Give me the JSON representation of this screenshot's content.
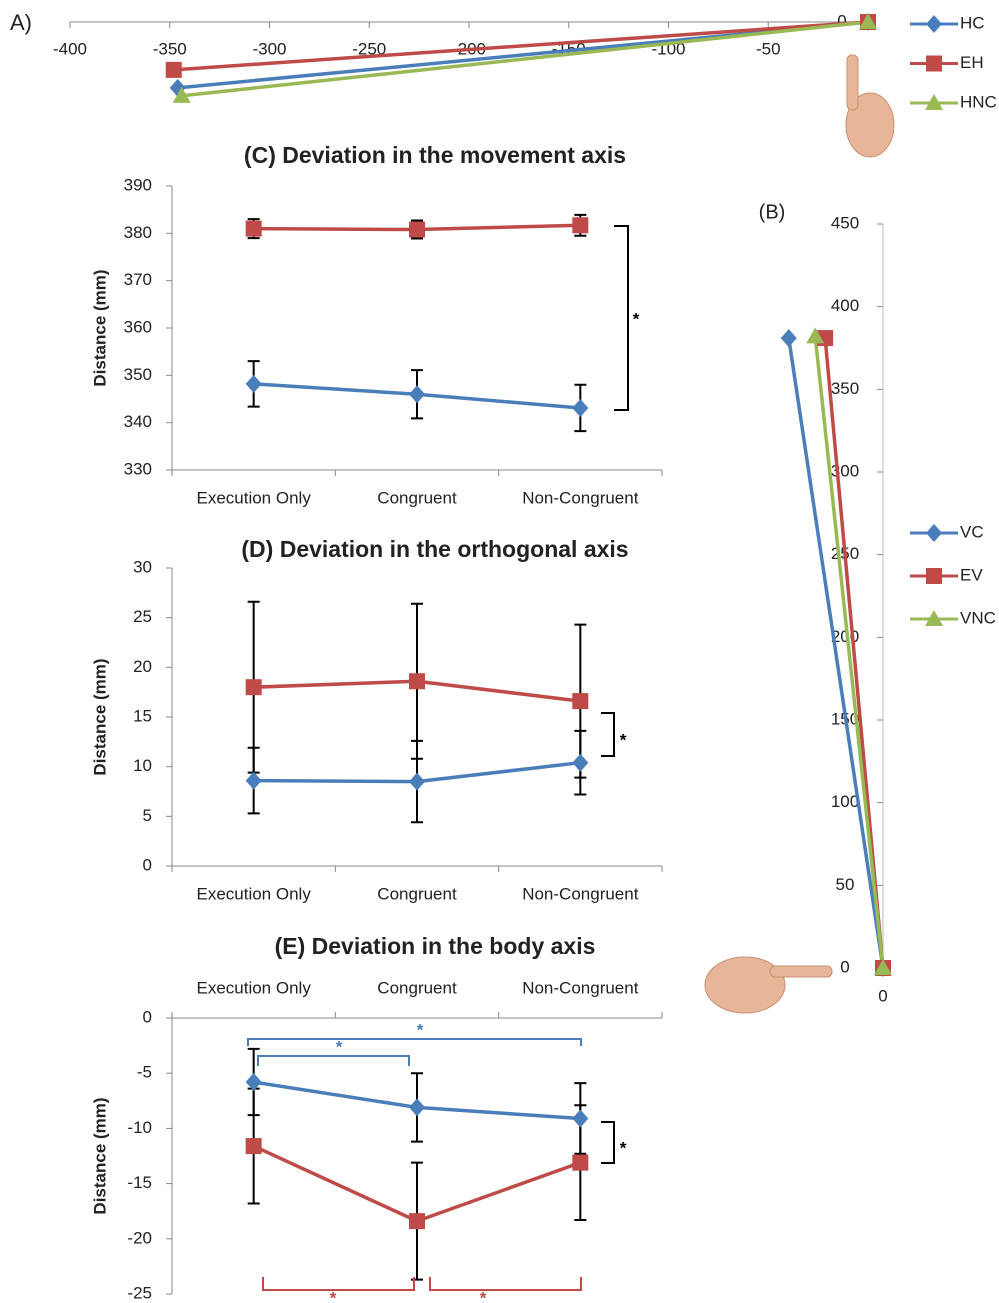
{
  "chart_data": [
    {
      "type": "line",
      "panel_label": "A)",
      "legend": "right",
      "xlim": [
        -400,
        0
      ],
      "xticks": [
        -400,
        -350,
        -300,
        -250,
        -200,
        -150,
        -100,
        -50,
        0
      ],
      "series": [
        {
          "name": "HC",
          "color": "#4a7ebb",
          "marker": "diamond",
          "x": [
            0,
            -346
          ],
          "values": [
            0,
            -33
          ]
        },
        {
          "name": "EH",
          "color": "#be4b48",
          "marker": "square",
          "x": [
            0,
            -348
          ],
          "values": [
            0,
            -24
          ]
        },
        {
          "name": "HNC",
          "color": "#98b954",
          "marker": "triangle",
          "x": [
            0,
            -344
          ],
          "values": [
            0,
            -37
          ]
        }
      ]
    },
    {
      "type": "line",
      "panel_label": "(B)",
      "legend": "right",
      "ylim": [
        0,
        450
      ],
      "yticks": [
        0,
        50,
        100,
        150,
        200,
        250,
        300,
        350,
        400,
        450
      ],
      "xticks": [
        0
      ],
      "series": [
        {
          "name": "VC",
          "color": "#4a7ebb",
          "marker": "diamond",
          "x": [
            0,
            -57
          ],
          "values": [
            0,
            381
          ]
        },
        {
          "name": "EV",
          "color": "#be4b48",
          "marker": "square",
          "x": [
            0,
            -35
          ],
          "values": [
            0,
            381
          ]
        },
        {
          "name": "VNC",
          "color": "#98b954",
          "marker": "triangle",
          "x": [
            0,
            -41
          ],
          "values": [
            0,
            382
          ]
        }
      ]
    },
    {
      "type": "line",
      "title": "(C) Deviation in the movement axis",
      "y_label": "Distance (mm)",
      "xaxis_position": "bottom",
      "categories": [
        "Execution Only",
        "Congruent",
        "Non-Congruent"
      ],
      "ylim": [
        330,
        390
      ],
      "yticks": [
        330,
        340,
        350,
        360,
        370,
        380,
        390
      ],
      "series": [
        {
          "color": "#4a7ebb",
          "marker": "diamond",
          "values": [
            348.2,
            346,
            343.1
          ],
          "errors": [
            4.8,
            5.1,
            4.9
          ]
        },
        {
          "color": "#be4b48",
          "marker": "square",
          "values": [
            381,
            380.8,
            381.7
          ],
          "errors": [
            2,
            1.9,
            2.2
          ]
        }
      ],
      "annotations": [
        "*"
      ]
    },
    {
      "type": "line",
      "title": "(D) Deviation in the orthogonal axis",
      "y_label": "Distance (mm)",
      "xaxis_position": "bottom",
      "categories": [
        "Execution Only",
        "Congruent",
        "Non-Congruent"
      ],
      "ylim": [
        0,
        30
      ],
      "yticks": [
        0,
        5,
        10,
        15,
        20,
        25,
        30
      ],
      "series": [
        {
          "color": "#4a7ebb",
          "marker": "diamond",
          "values": [
            8.6,
            8.5,
            10.4
          ],
          "errors": [
            3.3,
            4.1,
            3.2
          ]
        },
        {
          "color": "#be4b48",
          "marker": "square",
          "values": [
            18,
            18.6,
            16.6
          ],
          "errors": [
            8.6,
            7.8,
            7.7
          ]
        }
      ],
      "annotations": [
        "*"
      ]
    },
    {
      "type": "line",
      "title": "(E) Deviation in the body axis",
      "y_label": "Distance (mm)",
      "xaxis_position": "top",
      "categories": [
        "Execution Only",
        "Congruent",
        "Non-Congruent"
      ],
      "ylim": [
        -25,
        0
      ],
      "yticks": [
        0,
        -5,
        -10,
        -15,
        -20,
        -25
      ],
      "series": [
        {
          "color": "#4a7ebb",
          "marker": "diamond",
          "values": [
            -5.8,
            -8.1,
            -9.1
          ],
          "errors": [
            3,
            3.1,
            3.2
          ]
        },
        {
          "color": "#be4b48",
          "marker": "square",
          "values": [
            -11.6,
            -18.4,
            -13.1
          ],
          "errors": [
            5.2,
            5.3,
            5.2
          ]
        }
      ],
      "annotations": [
        "*",
        "*",
        "*",
        "*",
        "*"
      ]
    }
  ]
}
